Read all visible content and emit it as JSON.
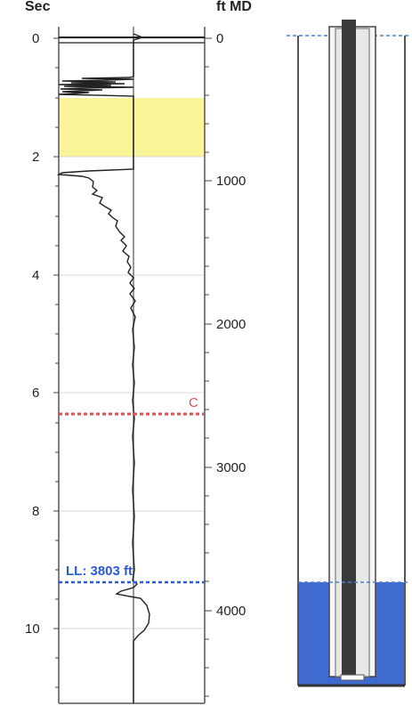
{
  "header": {
    "left_unit": "Sec",
    "right_unit": "ft MD"
  },
  "time_axis": {
    "ticks": [
      "0",
      "2",
      "4",
      "6",
      "8",
      "10"
    ],
    "range_sec": [
      -0.1,
      11.2
    ]
  },
  "depth_axis": {
    "ticks": [
      "0",
      "1000",
      "2000",
      "3000",
      "4000"
    ]
  },
  "markers": {
    "collar": {
      "label": "C",
      "time_sec": 6.4,
      "color": "#e05050"
    },
    "liquid_level": {
      "label": "LL: 3803 ft",
      "depth_ft": 3803,
      "time_sec": 9.2,
      "color": "#2a5bd7"
    }
  },
  "shaded_interval": {
    "from_sec": 1.0,
    "to_sec": 2.0,
    "color": "#fbf59a"
  },
  "wellbore": {
    "fluid_color": "#3f6bd0",
    "tubing_color": "#3a3a3a"
  }
}
